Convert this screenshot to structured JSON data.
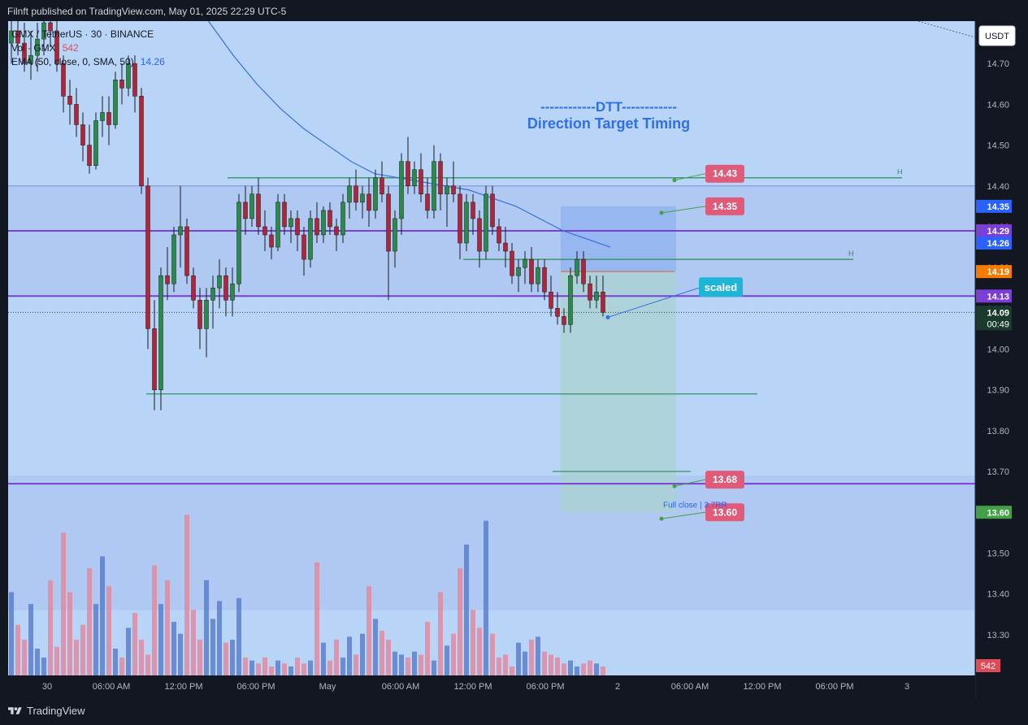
{
  "header": {
    "publisher_line": "Filnft published on TradingView.com, May 01, 2025 22:29 UTC-5"
  },
  "footer": {
    "brand": "TradingView"
  },
  "legend": {
    "symbol_line": "GMX / TetherUS · 30 · BINANCE",
    "volume_label": "Vol · GMX",
    "volume_value": "542",
    "ema_label": "EMA (50, close, 0, SMA, 50)",
    "ema_value": "14.26"
  },
  "title": {
    "line1": "------------DTT------------",
    "line2": "Direction Target Timing"
  },
  "colors": {
    "background": "#b8d4f7",
    "up": "#2a8a4a",
    "down": "#b0253a",
    "vol_up": "#5b7fcf",
    "vol_down": "#e38aa0",
    "ema": "#3a6fe0",
    "purple": "#7b3fd6",
    "green_line": "#2d8a5e",
    "label_pink": "#e05a7a",
    "scaled_label": "#1fb5d6",
    "axis_bg": "#131722"
  },
  "chart_data": {
    "type": "candlestick",
    "symbol": "GMX / TetherUS",
    "timeframe": "30",
    "exchange": "BINANCE",
    "currency": "USDT",
    "price_axis": {
      "min": 13.2,
      "max": 14.8,
      "ticks": [
        "14.70",
        "14.60",
        "14.50",
        "14.40",
        "14.30",
        "14.20",
        "14.10",
        "14.00",
        "13.90",
        "13.80",
        "13.70",
        "13.60",
        "13.50",
        "13.40",
        "13.30"
      ]
    },
    "time_axis": [
      "30",
      "06:00 AM",
      "12:00 PM",
      "06:00 PM",
      "May",
      "06:00 AM",
      "12:00 PM",
      "06:00 PM",
      "2",
      "06:00 AM",
      "12:00 PM",
      "06:00 PM",
      "3"
    ],
    "candles": [
      [
        14.75,
        14.82,
        14.7,
        14.78
      ],
      [
        14.78,
        14.85,
        14.72,
        14.75
      ],
      [
        14.75,
        14.8,
        14.68,
        14.7
      ],
      [
        14.7,
        14.78,
        14.66,
        14.72
      ],
      [
        14.72,
        14.8,
        14.68,
        14.76
      ],
      [
        14.76,
        14.82,
        14.72,
        14.8
      ],
      [
        14.8,
        14.85,
        14.74,
        14.78
      ],
      [
        14.78,
        14.82,
        14.68,
        14.7
      ],
      [
        14.7,
        14.72,
        14.58,
        14.62
      ],
      [
        14.62,
        14.66,
        14.55,
        14.6
      ],
      [
        14.6,
        14.64,
        14.52,
        14.55
      ],
      [
        14.55,
        14.58,
        14.46,
        14.5
      ],
      [
        14.5,
        14.55,
        14.43,
        14.45
      ],
      [
        14.45,
        14.58,
        14.44,
        14.56
      ],
      [
        14.56,
        14.62,
        14.52,
        14.58
      ],
      [
        14.58,
        14.62,
        14.5,
        14.55
      ],
      [
        14.55,
        14.68,
        14.54,
        14.66
      ],
      [
        14.66,
        14.7,
        14.6,
        14.64
      ],
      [
        14.64,
        14.72,
        14.62,
        14.7
      ],
      [
        14.7,
        14.72,
        14.58,
        14.62
      ],
      [
        14.62,
        14.64,
        14.38,
        14.4
      ],
      [
        14.4,
        14.42,
        14.0,
        14.05
      ],
      [
        14.05,
        14.12,
        13.85,
        13.9
      ],
      [
        13.9,
        14.2,
        13.85,
        14.18
      ],
      [
        14.18,
        14.25,
        14.12,
        14.16
      ],
      [
        14.16,
        14.3,
        14.14,
        14.28
      ],
      [
        14.28,
        14.4,
        14.2,
        14.3
      ],
      [
        14.3,
        14.32,
        14.16,
        14.18
      ],
      [
        14.18,
        14.2,
        14.1,
        14.12
      ],
      [
        14.12,
        14.15,
        14.0,
        14.05
      ],
      [
        14.05,
        14.15,
        13.98,
        14.12
      ],
      [
        14.12,
        14.18,
        14.05,
        14.15
      ],
      [
        14.15,
        14.22,
        14.1,
        14.18
      ],
      [
        14.18,
        14.2,
        14.08,
        14.12
      ],
      [
        14.12,
        14.2,
        14.08,
        14.16
      ],
      [
        14.16,
        14.38,
        14.14,
        14.36
      ],
      [
        14.36,
        14.4,
        14.28,
        14.32
      ],
      [
        14.32,
        14.4,
        14.3,
        14.38
      ],
      [
        14.38,
        14.42,
        14.28,
        14.3
      ],
      [
        14.3,
        14.34,
        14.24,
        14.28
      ],
      [
        14.28,
        14.3,
        14.22,
        14.25
      ],
      [
        14.25,
        14.38,
        14.24,
        14.36
      ],
      [
        14.36,
        14.38,
        14.28,
        14.3
      ],
      [
        14.3,
        14.34,
        14.26,
        14.32
      ],
      [
        14.32,
        14.34,
        14.24,
        14.28
      ],
      [
        14.28,
        14.3,
        14.18,
        14.22
      ],
      [
        14.22,
        14.34,
        14.2,
        14.32
      ],
      [
        14.32,
        14.36,
        14.26,
        14.28
      ],
      [
        14.28,
        14.35,
        14.26,
        14.34
      ],
      [
        14.34,
        14.36,
        14.28,
        14.3
      ],
      [
        14.3,
        14.32,
        14.24,
        14.28
      ],
      [
        14.28,
        14.38,
        14.26,
        14.36
      ],
      [
        14.36,
        14.42,
        14.32,
        14.4
      ],
      [
        14.4,
        14.44,
        14.34,
        14.36
      ],
      [
        14.36,
        14.4,
        14.32,
        14.38
      ],
      [
        14.38,
        14.42,
        14.3,
        14.34
      ],
      [
        14.34,
        14.44,
        14.32,
        14.42
      ],
      [
        14.42,
        14.46,
        14.36,
        14.38
      ],
      [
        14.38,
        14.4,
        14.12,
        14.24
      ],
      [
        14.24,
        14.34,
        14.2,
        14.32
      ],
      [
        14.32,
        14.48,
        14.28,
        14.46
      ],
      [
        14.46,
        14.52,
        14.38,
        14.4
      ],
      [
        14.4,
        14.46,
        14.38,
        14.44
      ],
      [
        14.44,
        14.48,
        14.36,
        14.38
      ],
      [
        14.38,
        14.42,
        14.32,
        14.34
      ],
      [
        14.34,
        14.5,
        14.32,
        14.46
      ],
      [
        14.46,
        14.48,
        14.34,
        14.38
      ],
      [
        14.38,
        14.42,
        14.3,
        14.4
      ],
      [
        14.4,
        14.46,
        14.36,
        14.38
      ],
      [
        14.38,
        14.4,
        14.22,
        14.26
      ],
      [
        14.26,
        14.38,
        14.24,
        14.36
      ],
      [
        14.36,
        14.38,
        14.28,
        14.32
      ],
      [
        14.32,
        14.34,
        14.2,
        14.24
      ],
      [
        14.24,
        14.4,
        14.22,
        14.38
      ],
      [
        14.38,
        14.4,
        14.28,
        14.3
      ],
      [
        14.3,
        14.32,
        14.24,
        14.26
      ],
      [
        14.26,
        14.3,
        14.2,
        14.24
      ],
      [
        14.24,
        14.26,
        14.16,
        14.18
      ],
      [
        14.18,
        14.22,
        14.14,
        14.2
      ],
      [
        14.2,
        14.24,
        14.16,
        14.22
      ],
      [
        14.22,
        14.25,
        14.14,
        14.16
      ],
      [
        14.16,
        14.22,
        14.14,
        14.2
      ],
      [
        14.2,
        14.22,
        14.12,
        14.14
      ],
      [
        14.14,
        14.18,
        14.08,
        14.1
      ],
      [
        14.1,
        14.14,
        14.06,
        14.08
      ],
      [
        14.08,
        14.1,
        14.04,
        14.06
      ],
      [
        14.06,
        14.2,
        14.04,
        14.18
      ],
      [
        14.18,
        14.24,
        14.16,
        14.22
      ],
      [
        14.22,
        14.24,
        14.14,
        14.16
      ],
      [
        14.16,
        14.18,
        14.1,
        14.12
      ],
      [
        14.12,
        14.18,
        14.1,
        14.14
      ],
      [
        14.14,
        14.18,
        14.08,
        14.09
      ]
    ],
    "volumes": [
      140,
      85,
      60,
      120,
      45,
      30,
      160,
      48,
      240,
      140,
      60,
      85,
      180,
      120,
      200,
      150,
      45,
      30,
      80,
      105,
      60,
      35,
      185,
      120,
      160,
      90,
      70,
      270,
      110,
      60,
      160,
      95,
      125,
      55,
      60,
      130,
      30,
      25,
      20,
      30,
      15,
      25,
      20,
      15,
      30,
      20,
      25,
      190,
      55,
      25,
      60,
      30,
      65,
      35,
      70,
      150,
      95,
      75,
      60,
      40,
      35,
      30,
      40,
      35,
      90,
      25,
      140,
      50,
      70,
      180,
      220,
      110,
      80,
      260,
      70,
      30,
      35,
      15,
      55,
      40,
      60,
      65,
      40,
      35,
      30,
      20,
      25,
      15,
      20,
      25,
      20,
      15
    ],
    "ema_50": [
      14.95,
      14.88,
      14.8,
      14.72,
      14.65,
      14.59,
      14.54,
      14.5,
      14.46,
      14.43,
      14.42,
      14.41,
      14.4,
      14.39,
      14.37,
      14.35,
      14.32,
      14.29,
      14.27,
      14.25
    ],
    "levels": {
      "purple_upper": 14.29,
      "purple_lower": 14.13,
      "purple_bottom": 13.67,
      "green_h_upper": 14.42,
      "green_h_mid": 14.22,
      "green_low": 13.89,
      "green_target": 13.7,
      "orange": 14.19
    },
    "labels": [
      {
        "text": "14.43",
        "price": 14.43
      },
      {
        "text": "14.35",
        "price": 14.35
      },
      {
        "text": "13.68",
        "price": 13.68
      },
      {
        "text": "13.60",
        "price": 13.6
      }
    ],
    "annotation_scaled": "scaled",
    "annotation_full_close": "Full close | 3.7RR",
    "h_marker": "H",
    "axis_badges": [
      {
        "text": "14.35",
        "price": 14.35,
        "color": "#2962ff",
        "fg": "#ffffff"
      },
      {
        "text": "14.29",
        "price": 14.29,
        "color": "#7b3fd6",
        "fg": "#ffffff"
      },
      {
        "text": "14.26",
        "price": 14.26,
        "color": "#2962ff",
        "fg": "#ffffff"
      },
      {
        "text": "14.19",
        "price": 14.19,
        "color": "#f57c00",
        "fg": "#ffffff"
      },
      {
        "text": "14.13",
        "price": 14.13,
        "color": "#7b3fd6",
        "fg": "#ffffff"
      },
      {
        "text": "13.60",
        "price": 13.6,
        "color": "#43a047",
        "fg": "#ffffff"
      }
    ],
    "last_price": {
      "text": "14.09",
      "countdown": "00:49",
      "price": 14.09
    },
    "volume_badge": "542"
  }
}
